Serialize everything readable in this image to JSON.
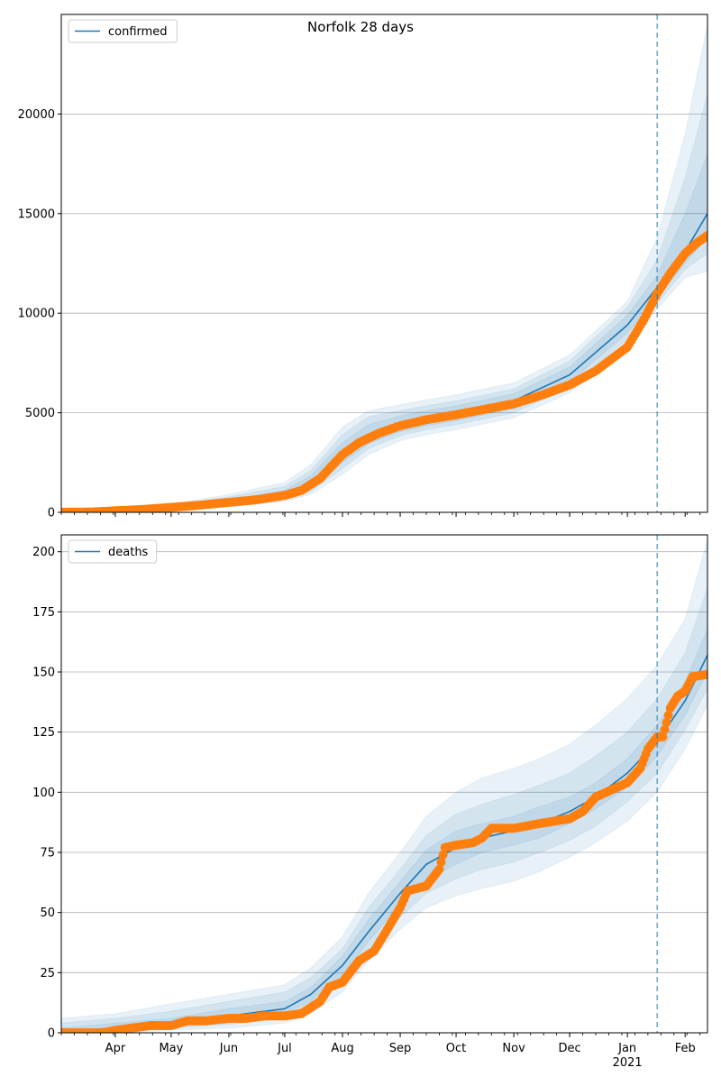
{
  "figure_title": "Norfolk 28 days",
  "colors": {
    "model": "#1f77b4",
    "observed": "#ff7f0e",
    "band": "#1f77b4",
    "grid": "#b0b0b0",
    "today_line": "#1f77b4"
  },
  "x_axis": {
    "start_date": "2020-03-03",
    "end_date": "2021-02-13",
    "month_ticks": [
      {
        "date": "2020-04-01",
        "label": "Apr"
      },
      {
        "date": "2020-05-01",
        "label": "May"
      },
      {
        "date": "2020-06-01",
        "label": "Jun"
      },
      {
        "date": "2020-07-01",
        "label": "Jul"
      },
      {
        "date": "2020-08-01",
        "label": "Aug"
      },
      {
        "date": "2020-09-01",
        "label": "Sep"
      },
      {
        "date": "2020-10-01",
        "label": "Oct"
      },
      {
        "date": "2020-11-01",
        "label": "Nov"
      },
      {
        "date": "2020-12-01",
        "label": "Dec"
      },
      {
        "date": "2021-01-01",
        "label": "Jan"
      },
      {
        "date": "2021-02-01",
        "label": "Feb"
      }
    ],
    "year_label": "2021",
    "today_marker_date": "2021-01-17"
  },
  "chart_data": [
    {
      "type": "line",
      "legend": "confirmed",
      "legend_position": "top-left",
      "grid": "horizontal",
      "ylim": [
        0,
        25000
      ],
      "yticks": [
        0,
        5000,
        10000,
        15000,
        20000
      ],
      "model_curve": {
        "dates": [
          "2020-03-03",
          "2020-04-01",
          "2020-05-01",
          "2020-06-01",
          "2020-07-01",
          "2020-07-15",
          "2020-08-01",
          "2020-08-15",
          "2020-09-01",
          "2020-09-15",
          "2020-10-01",
          "2020-11-01",
          "2020-12-01",
          "2021-01-01",
          "2021-01-17",
          "2021-02-01",
          "2021-02-13"
        ],
        "values": [
          20,
          60,
          220,
          500,
          900,
          1500,
          3000,
          3900,
          4450,
          4750,
          5000,
          5600,
          6900,
          9400,
          11300,
          13100,
          15000
        ]
      },
      "uncertainty_bands": [
        {
          "lower": [
            0,
            25,
            120,
            300,
            550,
            900,
            1900,
            2900,
            3600,
            3900,
            4150,
            4750,
            6000,
            8400,
            10200,
            11800,
            12100
          ],
          "upper": [
            60,
            150,
            400,
            900,
            1500,
            2400,
            4300,
            5100,
            5400,
            5650,
            5900,
            6500,
            7900,
            10600,
            13800,
            19000,
            24500
          ]
        },
        {
          "lower": [
            0,
            35,
            150,
            360,
            650,
            1050,
            2200,
            3200,
            3850,
            4150,
            4400,
            5000,
            6300,
            8700,
            10500,
            12200,
            13000
          ],
          "upper": [
            45,
            120,
            340,
            780,
            1300,
            2100,
            3900,
            4800,
            5100,
            5350,
            5600,
            6200,
            7600,
            10300,
            12700,
            16800,
            21000
          ]
        },
        {
          "lower": [
            5,
            45,
            180,
            420,
            750,
            1200,
            2500,
            3450,
            4050,
            4350,
            4600,
            5200,
            6550,
            9000,
            10800,
            12500,
            13800
          ],
          "upper": [
            35,
            95,
            290,
            650,
            1100,
            1850,
            3500,
            4400,
            4850,
            5100,
            5350,
            5950,
            7300,
            9900,
            11900,
            15000,
            18000
          ]
        }
      ],
      "observed": {
        "dates": [
          "2020-03-03",
          "2020-03-20",
          "2020-04-01",
          "2020-04-15",
          "2020-05-01",
          "2020-05-15",
          "2020-06-01",
          "2020-06-15",
          "2020-07-01",
          "2020-07-10",
          "2020-07-20",
          "2020-07-25",
          "2020-08-01",
          "2020-08-10",
          "2020-08-20",
          "2020-09-01",
          "2020-09-15",
          "2020-10-01",
          "2020-10-15",
          "2020-11-01",
          "2020-11-15",
          "2020-12-01",
          "2020-12-15",
          "2021-01-01",
          "2021-01-10",
          "2021-01-17",
          "2021-01-24",
          "2021-02-01",
          "2021-02-07",
          "2021-02-13"
        ],
        "values": [
          5,
          20,
          80,
          140,
          250,
          350,
          500,
          620,
          850,
          1100,
          1700,
          2200,
          2900,
          3500,
          3950,
          4350,
          4650,
          4900,
          5150,
          5450,
          5850,
          6400,
          7100,
          8300,
          9700,
          11000,
          12000,
          13000,
          13500,
          13900
        ]
      }
    },
    {
      "type": "line",
      "legend": "deaths",
      "legend_position": "top-left",
      "grid": "horizontal",
      "ylim": [
        0,
        207
      ],
      "yticks": [
        0,
        25,
        50,
        75,
        100,
        125,
        150,
        175,
        200
      ],
      "model_curve": {
        "dates": [
          "2020-03-03",
          "2020-04-01",
          "2020-05-01",
          "2020-06-01",
          "2020-07-01",
          "2020-07-15",
          "2020-08-01",
          "2020-08-15",
          "2020-09-01",
          "2020-09-15",
          "2020-10-01",
          "2020-10-15",
          "2020-11-01",
          "2020-11-15",
          "2020-12-01",
          "2020-12-15",
          "2021-01-01",
          "2021-01-17",
          "2021-02-01",
          "2021-02-13"
        ],
        "values": [
          0.5,
          2,
          4,
          7,
          10,
          16,
          28,
          42,
          58,
          70,
          77,
          81,
          84,
          87,
          92,
          98,
          108,
          121,
          138,
          157
        ]
      },
      "uncertainty_bands": [
        {
          "lower": [
            0,
            0,
            1,
            2,
            4,
            8,
            17,
            30,
            43,
            52,
            57,
            60,
            63,
            67,
            73,
            79,
            88,
            100,
            118,
            136
          ],
          "upper": [
            6,
            8,
            12,
            16,
            20,
            27,
            40,
            58,
            75,
            90,
            100,
            106,
            110,
            114,
            120,
            128,
            139,
            153,
            172,
            205
          ]
        },
        {
          "lower": [
            0,
            0.5,
            2,
            3.5,
            6,
            11,
            21,
            34,
            48,
            58,
            64,
            68,
            71,
            75,
            80,
            86,
            96,
            108,
            126,
            143
          ],
          "upper": [
            4,
            6,
            9,
            13,
            17,
            23,
            35,
            52,
            68,
            82,
            91,
            95,
            99,
            103,
            108,
            115,
            125,
            139,
            158,
            185
          ]
        },
        {
          "lower": [
            0,
            1,
            3,
            5,
            8,
            13,
            24,
            38,
            53,
            64,
            70,
            75,
            78,
            81,
            87,
            93,
            102,
            115,
            132,
            150
          ],
          "upper": [
            2,
            4,
            6,
            10,
            13,
            19,
            32,
            47,
            63,
            76,
            84,
            87,
            90,
            94,
            98,
            104,
            114,
            128,
            146,
            168
          ]
        }
      ],
      "observed": {
        "dates": [
          "2020-03-03",
          "2020-03-25",
          "2020-04-01",
          "2020-04-10",
          "2020-04-20",
          "2020-05-01",
          "2020-05-10",
          "2020-05-20",
          "2020-06-01",
          "2020-06-10",
          "2020-06-20",
          "2020-07-01",
          "2020-07-10",
          "2020-07-20",
          "2020-07-25",
          "2020-08-01",
          "2020-08-10",
          "2020-08-18",
          "2020-08-22",
          "2020-09-01",
          "2020-09-05",
          "2020-09-10",
          "2020-09-15",
          "2020-09-20",
          "2020-09-22",
          "2020-09-25",
          "2020-10-01",
          "2020-10-10",
          "2020-10-15",
          "2020-10-20",
          "2020-11-01",
          "2020-11-15",
          "2020-12-01",
          "2020-12-08",
          "2020-12-15",
          "2021-01-01",
          "2021-01-08",
          "2021-01-12",
          "2021-01-17",
          "2021-01-20",
          "2021-01-24",
          "2021-01-28",
          "2021-02-01",
          "2021-02-05",
          "2021-02-13"
        ],
        "values": [
          0,
          0,
          1,
          2,
          3,
          3,
          5,
          5,
          6,
          6,
          7,
          7,
          8,
          13,
          19,
          21,
          30,
          34,
          39,
          52,
          59,
          60,
          61,
          66,
          68,
          77,
          78,
          79,
          81,
          85,
          85,
          87,
          89,
          92,
          98,
          104,
          110,
          118,
          123,
          123,
          135,
          140,
          142,
          148,
          149
        ]
      }
    }
  ]
}
